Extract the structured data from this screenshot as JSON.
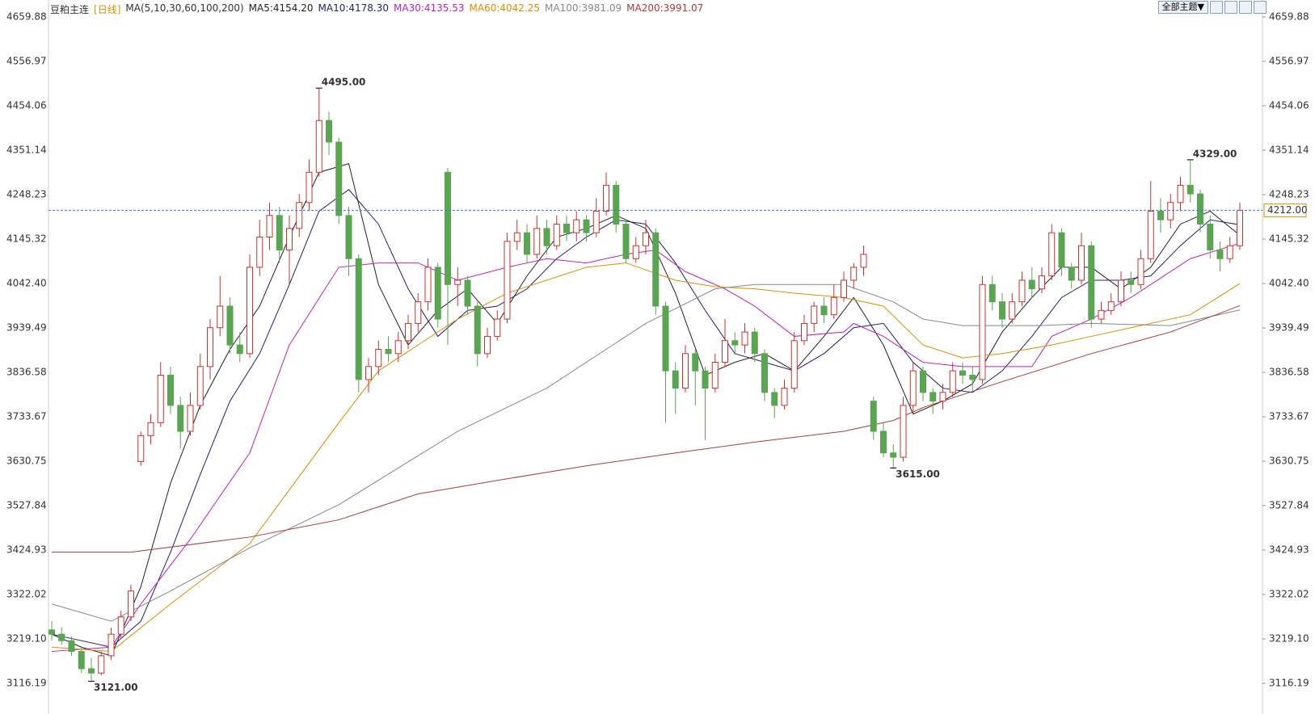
{
  "chart_data": {
    "type": "candlestick",
    "title": "豆粕主连",
    "period": "[日线]",
    "indicator": "MA(5,10,30,60,100,200)",
    "theme_button": "全部主题▼",
    "up_color": "#d0302a",
    "down_color": "#5aa552",
    "ylim": [
      3045.1,
      4699.2
    ],
    "yticks": [
      4659.88,
      4556.97,
      4454.06,
      4351.14,
      4248.23,
      4145.32,
      {
        "value": 4042.4,
        "label": "4042.40"
      },
      3939.49,
      3836.58,
      3733.67,
      3630.75,
      3527.84,
      3424.93,
      3322.02,
      {
        "value": 3219.1,
        "label": "3219.10"
      },
      3116.19
    ],
    "last_price": {
      "value": 4212,
      "label": "4212.00"
    },
    "candles": [
      [
        3240,
        3260,
        3215,
        3230
      ],
      [
        3230,
        3245,
        3205,
        3215
      ],
      [
        3215,
        3225,
        3180,
        3190
      ],
      [
        3190,
        3200,
        3140,
        3150
      ],
      [
        3150,
        3175,
        3121,
        3140
      ],
      [
        3140,
        3190,
        3135,
        3180
      ],
      [
        3180,
        3245,
        3170,
        3230
      ],
      [
        3230,
        3285,
        3220,
        3270
      ],
      [
        3270,
        3345,
        3260,
        3330
      ],
      [
        3630,
        3700,
        3620,
        3690
      ],
      [
        3690,
        3740,
        3670,
        3720
      ],
      [
        3720,
        3860,
        3710,
        3830
      ],
      [
        3830,
        3850,
        3740,
        3760
      ],
      [
        3760,
        3780,
        3660,
        3700
      ],
      [
        3700,
        3790,
        3690,
        3760
      ],
      [
        3760,
        3880,
        3750,
        3850
      ],
      [
        3850,
        3960,
        3820,
        3940
      ],
      [
        3940,
        4060,
        3920,
        3990
      ],
      [
        3990,
        4010,
        3880,
        3900
      ],
      [
        3900,
        3930,
        3860,
        3880
      ],
      [
        3880,
        4110,
        3870,
        4080
      ],
      [
        4080,
        4190,
        4060,
        4150
      ],
      [
        4150,
        4230,
        4120,
        4200
      ],
      [
        4200,
        4220,
        4090,
        4120
      ],
      [
        4120,
        4200,
        4040,
        4170
      ],
      [
        4170,
        4250,
        4150,
        4230
      ],
      [
        4230,
        4330,
        4210,
        4300
      ],
      [
        4300,
        4495,
        4290,
        4420
      ],
      [
        4420,
        4440,
        4340,
        4370
      ],
      [
        4370,
        4380,
        4180,
        4200
      ],
      [
        4200,
        4220,
        4060,
        4100
      ],
      [
        4100,
        4110,
        3790,
        3820
      ],
      [
        3820,
        3870,
        3790,
        3850
      ],
      [
        3850,
        3910,
        3830,
        3890
      ],
      [
        3890,
        3920,
        3860,
        3880
      ],
      [
        3880,
        3930,
        3860,
        3910
      ],
      [
        3910,
        3970,
        3890,
        3950
      ],
      [
        3950,
        4020,
        3930,
        4000
      ],
      [
        4000,
        4100,
        3980,
        4080
      ],
      [
        4080,
        4090,
        3940,
        3960
      ],
      [
        4300,
        4310,
        3900,
        4040
      ],
      [
        4040,
        4080,
        3990,
        4050
      ],
      [
        4050,
        4060,
        3970,
        3990
      ],
      [
        3990,
        4000,
        3850,
        3880
      ],
      [
        3880,
        3940,
        3870,
        3920
      ],
      [
        3920,
        3980,
        3910,
        3960
      ],
      [
        3960,
        4160,
        3950,
        4140
      ],
      [
        4140,
        4190,
        4120,
        4160
      ],
      [
        4160,
        4180,
        4090,
        4110
      ],
      [
        4110,
        4200,
        4100,
        4170
      ],
      [
        4170,
        4190,
        4110,
        4130
      ],
      [
        4130,
        4200,
        4120,
        4180
      ],
      [
        4180,
        4200,
        4140,
        4160
      ],
      [
        4160,
        4210,
        4140,
        4190
      ],
      [
        4190,
        4200,
        4140,
        4160
      ],
      [
        4160,
        4240,
        4150,
        4210
      ],
      [
        4210,
        4300,
        4200,
        4270
      ],
      [
        4270,
        4280,
        4160,
        4180
      ],
      [
        4180,
        4190,
        4090,
        4100
      ],
      [
        4100,
        4150,
        4090,
        4130
      ],
      [
        4130,
        4190,
        4110,
        4160
      ],
      [
        4160,
        4170,
        3970,
        3990
      ],
      [
        3990,
        4000,
        3720,
        3840
      ],
      [
        3840,
        3860,
        3740,
        3800
      ],
      [
        3800,
        3900,
        3790,
        3880
      ],
      [
        3880,
        3890,
        3760,
        3840
      ],
      [
        3840,
        3850,
        3680,
        3800
      ],
      [
        3800,
        3880,
        3790,
        3860
      ],
      [
        3860,
        3960,
        3850,
        3910
      ],
      [
        3910,
        3930,
        3880,
        3900
      ],
      [
        3900,
        3950,
        3880,
        3930
      ],
      [
        3930,
        3940,
        3860,
        3880
      ],
      [
        3880,
        3890,
        3770,
        3790
      ],
      [
        3790,
        3800,
        3730,
        3760
      ],
      [
        3760,
        3820,
        3750,
        3800
      ],
      [
        3800,
        3930,
        3790,
        3910
      ],
      [
        3910,
        3970,
        3900,
        3950
      ],
      [
        3950,
        4000,
        3930,
        3990
      ],
      [
        3990,
        4010,
        3950,
        3970
      ],
      [
        3970,
        4040,
        3960,
        4010
      ],
      [
        4010,
        4070,
        4000,
        4050
      ],
      [
        4050,
        4090,
        4030,
        4080
      ],
      [
        4080,
        4130,
        4060,
        4110
      ],
      [
        3770,
        3780,
        3680,
        3700
      ],
      [
        3700,
        3720,
        3640,
        3650
      ],
      [
        3650,
        3670,
        3615,
        3640
      ],
      [
        3640,
        3780,
        3630,
        3760
      ],
      [
        3760,
        3860,
        3740,
        3840
      ],
      [
        3840,
        3850,
        3770,
        3790
      ],
      [
        3790,
        3800,
        3740,
        3770
      ],
      [
        3770,
        3810,
        3750,
        3790
      ],
      [
        3790,
        3860,
        3780,
        3840
      ],
      [
        3840,
        3860,
        3810,
        3830
      ],
      [
        3830,
        3850,
        3790,
        3820
      ],
      [
        3820,
        4060,
        3810,
        4040
      ],
      [
        4040,
        4060,
        3980,
        4000
      ],
      [
        4000,
        4020,
        3940,
        3960
      ],
      [
        3960,
        4020,
        3950,
        4000
      ],
      [
        4000,
        4070,
        3990,
        4050
      ],
      [
        4050,
        4080,
        4010,
        4030
      ],
      [
        4030,
        4080,
        4020,
        4060
      ],
      [
        4060,
        4180,
        4050,
        4160
      ],
      [
        4160,
        4170,
        4060,
        4080
      ],
      [
        4080,
        4090,
        4030,
        4050
      ],
      [
        4050,
        4160,
        4040,
        4130
      ],
      [
        4130,
        4140,
        3940,
        3960
      ],
      [
        3960,
        4000,
        3950,
        3980
      ],
      [
        3980,
        4020,
        3970,
        4000
      ],
      [
        4000,
        4070,
        3990,
        4050
      ],
      [
        4050,
        4070,
        4020,
        4040
      ],
      [
        4040,
        4120,
        4030,
        4100
      ],
      [
        4100,
        4280,
        4090,
        4210
      ],
      [
        4210,
        4240,
        4160,
        4190
      ],
      [
        4190,
        4250,
        4170,
        4230
      ],
      [
        4230,
        4290,
        4210,
        4270
      ],
      [
        4270,
        4329,
        4230,
        4250
      ],
      [
        4250,
        4260,
        4160,
        4180
      ],
      [
        4180,
        4200,
        4100,
        4120
      ],
      [
        4120,
        4140,
        4070,
        4100
      ],
      [
        4100,
        4150,
        4090,
        4130
      ],
      [
        4130,
        4230,
        4120,
        4212
      ]
    ],
    "ma_lines": [
      {
        "legend": "MA5:4154.20",
        "color": "#222222",
        "x": [
          0,
          3,
          6,
          9,
          12,
          15,
          18,
          21,
          24,
          27,
          30,
          33,
          36,
          39,
          42,
          45,
          48,
          51,
          54,
          57,
          60,
          63,
          66,
          69,
          72,
          75,
          78,
          81,
          84,
          87,
          90,
          93,
          96,
          99,
          102,
          105,
          108,
          111,
          114,
          117,
          120
        ],
        "values": [
          3230,
          3200,
          3180,
          3340,
          3580,
          3760,
          3890,
          3990,
          4150,
          4300,
          4320,
          4040,
          3900,
          3980,
          4030,
          3950,
          4060,
          4150,
          4170,
          4200,
          4170,
          4020,
          3830,
          3860,
          3880,
          3840,
          3920,
          4010,
          3900,
          3740,
          3770,
          3810,
          3930,
          4010,
          4080,
          4080,
          4030,
          4080,
          4180,
          4210,
          4154.2
        ]
      },
      {
        "legend": "MA10:4178.30",
        "color": "#1f1f7a",
        "x": [
          0,
          6,
          9,
          12,
          15,
          18,
          21,
          24,
          27,
          30,
          33,
          36,
          39,
          42,
          45,
          48,
          51,
          54,
          57,
          60,
          63,
          66,
          69,
          72,
          75,
          78,
          81,
          84,
          87,
          90,
          93,
          96,
          99,
          102,
          105,
          108,
          111,
          114,
          117,
          120
        ],
        "values": [
          3230,
          3200,
          3260,
          3420,
          3600,
          3770,
          3880,
          4040,
          4210,
          4260,
          4180,
          4030,
          3920,
          3980,
          3990,
          4030,
          4100,
          4150,
          4190,
          4180,
          4090,
          3980,
          3880,
          3860,
          3840,
          3880,
          3940,
          3950,
          3860,
          3800,
          3790,
          3840,
          3920,
          4010,
          4050,
          4050,
          4060,
          4130,
          4190,
          4178.3
        ]
      },
      {
        "legend": "MA30:4135.53",
        "color": "#c020c0",
        "x": [
          0,
          6,
          9,
          14,
          20,
          24,
          29,
          33,
          37,
          41,
          46,
          50,
          54,
          58,
          61,
          64,
          68,
          71,
          75,
          80,
          81,
          84,
          88,
          92,
          96,
          99,
          101,
          105,
          109,
          115,
          120
        ],
        "values": [
          3190,
          3200,
          3300,
          3450,
          3650,
          3900,
          4080,
          4090,
          4090,
          4050,
          4080,
          4100,
          4090,
          4110,
          4120,
          4070,
          4030,
          3990,
          3920,
          3930,
          3950,
          3920,
          3860,
          3850,
          3850,
          3850,
          3920,
          3960,
          4010,
          4100,
          4135.53
        ]
      },
      {
        "legend": "MA60:4042.25",
        "color": "#e08c00",
        "x": [
          0,
          6,
          12,
          20,
          29,
          33,
          37,
          41,
          46,
          54,
          58,
          63,
          67,
          71,
          75,
          80,
          84,
          88,
          92,
          96,
          101,
          105,
          109,
          115,
          120
        ],
        "values": [
          3200,
          3190,
          3300,
          3440,
          3720,
          3840,
          3900,
          3960,
          4020,
          4080,
          4090,
          4050,
          4035,
          4030,
          4020,
          4010,
          3990,
          3900,
          3870,
          3880,
          3900,
          3920,
          3940,
          3970,
          4042.25
        ]
      },
      {
        "legend": "MA100:3981.09",
        "color": "#888888",
        "x": [
          0,
          6,
          12,
          20,
          29,
          41,
          50,
          60,
          67,
          71,
          80,
          85,
          88,
          92,
          100,
          105,
          113,
          120
        ],
        "values": [
          3300,
          3260,
          3330,
          3430,
          3530,
          3700,
          3800,
          3950,
          4030,
          4040,
          4040,
          4000,
          3960,
          3945,
          3945,
          3950,
          3945,
          3981.09
        ]
      },
      {
        "legend": "MA200:3991.07",
        "color": "#b03a3a",
        "x": [
          0,
          8,
          20,
          29,
          37,
          46,
          54,
          63,
          71,
          80,
          85,
          88,
          96,
          105,
          113,
          120
        ],
        "values": [
          3420,
          3420,
          3455,
          3495,
          3555,
          3590,
          3620,
          3650,
          3675,
          3700,
          3725,
          3755,
          3815,
          3880,
          3930,
          3991.07
        ]
      }
    ],
    "annotations": [
      {
        "x": 27,
        "value": 4495,
        "label": "4495.00",
        "color": "#d0302a"
      },
      {
        "x": 4,
        "value": 3121,
        "label": "3121.00",
        "color": "#4a9a3f"
      },
      {
        "x": 85,
        "value": 3615,
        "label": "3615.00",
        "color": "#4a9a3f"
      },
      {
        "x": 115,
        "value": 4329,
        "label": "4329.00",
        "color": "#d0302a"
      }
    ]
  }
}
